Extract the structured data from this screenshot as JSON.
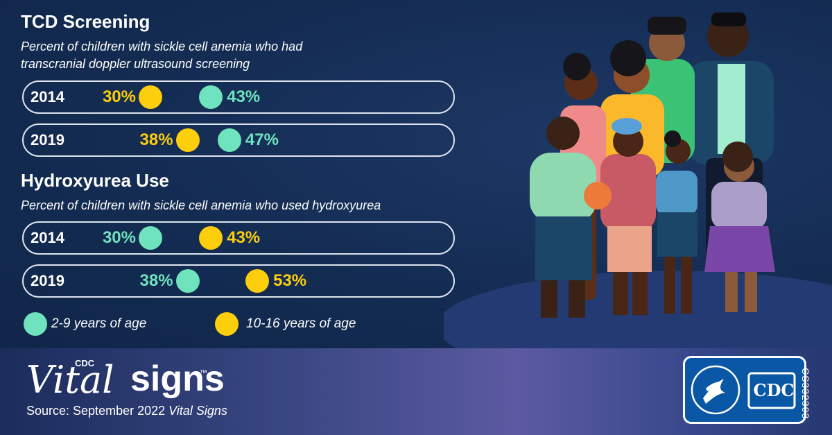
{
  "palette": {
    "age_2_9": "#6fe3bd",
    "age_10_16": "#fcce0c"
  },
  "chart_data": [
    {
      "type": "dot-plot",
      "title": "TCD Screening",
      "subtitle_lines": [
        "Percent of children with sickle cell anemia who had",
        "transcranial doppler ultrasound screening"
      ],
      "categories": [
        "2014",
        "2019"
      ],
      "series": [
        {
          "name": "10-16 years of age",
          "values": [
            30,
            38
          ]
        },
        {
          "name": "2-9 years of age",
          "values": [
            43,
            47
          ]
        }
      ]
    },
    {
      "type": "dot-plot",
      "title": "Hydroxyurea Use",
      "subtitle_lines": [
        "Percent of children with sickle cell anemia who used hydroxyurea"
      ],
      "categories": [
        "2014",
        "2019"
      ],
      "series": [
        {
          "name": "2-9 years of age",
          "values": [
            30,
            38
          ]
        },
        {
          "name": "10-16 years of age",
          "values": [
            43,
            53
          ]
        }
      ]
    }
  ],
  "legend": [
    {
      "label": "2-9 years of age"
    },
    {
      "label": "10-16 years of age"
    }
  ],
  "footer": {
    "brand_cdc": "CDC",
    "brand_vital": "Vital",
    "brand_signs": "signs",
    "brand_tm": "™",
    "source_prefix": "Source: September 2022",
    "source_italic": "Vital Signs",
    "logo_text": "CDC",
    "code": "CS332303"
  }
}
